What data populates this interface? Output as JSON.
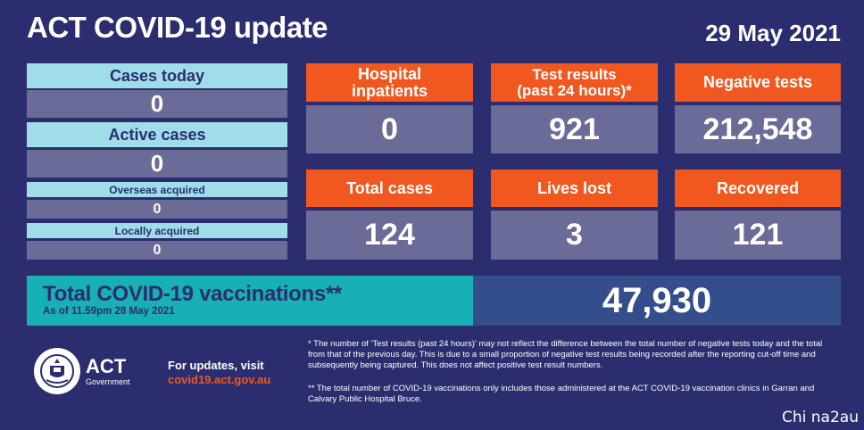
{
  "header": {
    "title": "ACT COVID-19 update",
    "date": "29 May 2021"
  },
  "left_panel": {
    "cases_today": {
      "label": "Cases today",
      "value": "0"
    },
    "active_cases": {
      "label": "Active cases",
      "value": "0"
    },
    "overseas_acquired": {
      "label": "Overseas acquired",
      "value": "0"
    },
    "locally_acquired": {
      "label": "Locally acquired",
      "value": "0"
    }
  },
  "stats": {
    "hospital": {
      "label_line1": "Hospital",
      "label_line2": "inpatients",
      "value": "0"
    },
    "tests": {
      "label_line1": "Test results",
      "label_line2": "(past 24 hours)*",
      "value": "921"
    },
    "negative": {
      "label": "Negative tests",
      "value": "212,548"
    },
    "total_cases": {
      "label": "Total cases",
      "value": "124"
    },
    "lives_lost": {
      "label": "Lives lost",
      "value": "3"
    },
    "recovered": {
      "label": "Recovered",
      "value": "121"
    }
  },
  "vaccinations": {
    "title": "Total COVID-19 vaccinations**",
    "subtitle": "As of 11.59pm 28 May 2021",
    "value": "47,930"
  },
  "footer": {
    "logo_text": "ACT",
    "logo_sub": "Government",
    "updates_label": "For updates, visit",
    "updates_link": "covid19.act.gov.au",
    "note1": "* The number of 'Test results (past 24 hours)' may not reflect the difference between the total number of negative tests today and the total from that of the previous day. This is due to a small proportion of negative test results being recorded after the reporting cut-off time and subsequently being captured. This does not affect positive test result numbers.",
    "note2": "** The total number of COVID-19 vaccinations only includes those administered at the ACT COVID-19 vaccination clinics in Garran and Calvary Public Hospital Bruce.",
    "watermark": "Chi na2au"
  }
}
